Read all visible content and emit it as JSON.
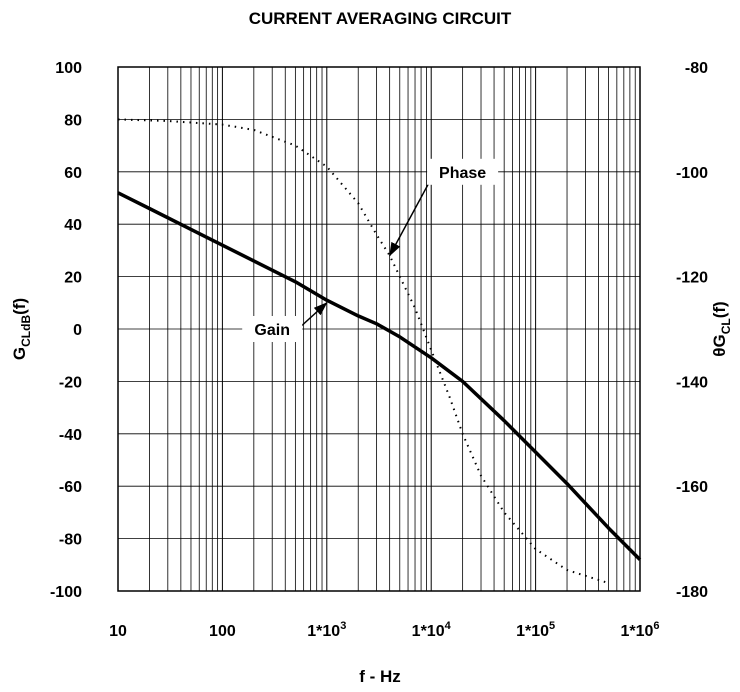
{
  "chart_data": {
    "type": "line",
    "title": "CURRENT AVERAGING CIRCUIT",
    "xlabel": "f - Hz",
    "ylabel_left": {
      "main": "G",
      "sub": "CLdB",
      "suffix": "(f)"
    },
    "ylabel_right": {
      "main": "θG",
      "sub": "CL",
      "suffix": "(f)"
    },
    "x_scale": "log",
    "xlim": [
      10,
      1000000
    ],
    "x_ticks": [
      {
        "value": 10,
        "label": "10"
      },
      {
        "value": 100,
        "label": "100"
      },
      {
        "value": 1000,
        "label": "1*10",
        "exp": "3"
      },
      {
        "value": 10000,
        "label": "1*10",
        "exp": "4"
      },
      {
        "value": 100000,
        "label": "1*10",
        "exp": "5"
      },
      {
        "value": 1000000,
        "label": "1*10",
        "exp": "6"
      }
    ],
    "ylim_left": [
      -100,
      100
    ],
    "y_ticks_left": [
      "100",
      "80",
      "60",
      "40",
      "20",
      "0",
      "-20",
      "-40",
      "-60",
      "-80",
      "-100"
    ],
    "ylim_right": [
      -180,
      -80
    ],
    "y_ticks_right": [
      "-80",
      "-100",
      "-120",
      "-140",
      "-160",
      "-180"
    ],
    "grid": true,
    "series": [
      {
        "name": "Gain",
        "axis": "left",
        "style": "solid",
        "x": [
          10,
          20,
          50,
          100,
          200,
          500,
          1000,
          2000,
          3000,
          5000,
          10000,
          20000,
          50000,
          100000,
          200000,
          500000,
          1000000
        ],
        "y": [
          52,
          46,
          38,
          32,
          26,
          18,
          11,
          5,
          2,
          -3,
          -11,
          -20,
          -35,
          -47,
          -59,
          -76,
          -88
        ]
      },
      {
        "name": "Phase",
        "axis": "right",
        "style": "dotted",
        "x": [
          10,
          30,
          100,
          200,
          500,
          1000,
          2000,
          3000,
          4000,
          5000,
          7000,
          10000,
          15000,
          20000,
          30000,
          50000,
          100000,
          200000,
          500000
        ],
        "y": [
          -90,
          -90.3,
          -91,
          -92,
          -95,
          -99,
          -106,
          -112,
          -116,
          -120,
          -126,
          -134,
          -143,
          -150,
          -158,
          -165,
          -172,
          -176,
          -178.5
        ]
      }
    ],
    "annotations": [
      {
        "text": "Phase",
        "target_series": "Phase",
        "target": [
          4000,
          -116
        ],
        "label_at": [
          20000,
          -100
        ]
      },
      {
        "text": "Gain",
        "target_series": "Gain",
        "target": [
          1000,
          10
        ],
        "label_at": [
          300,
          0
        ]
      }
    ]
  }
}
